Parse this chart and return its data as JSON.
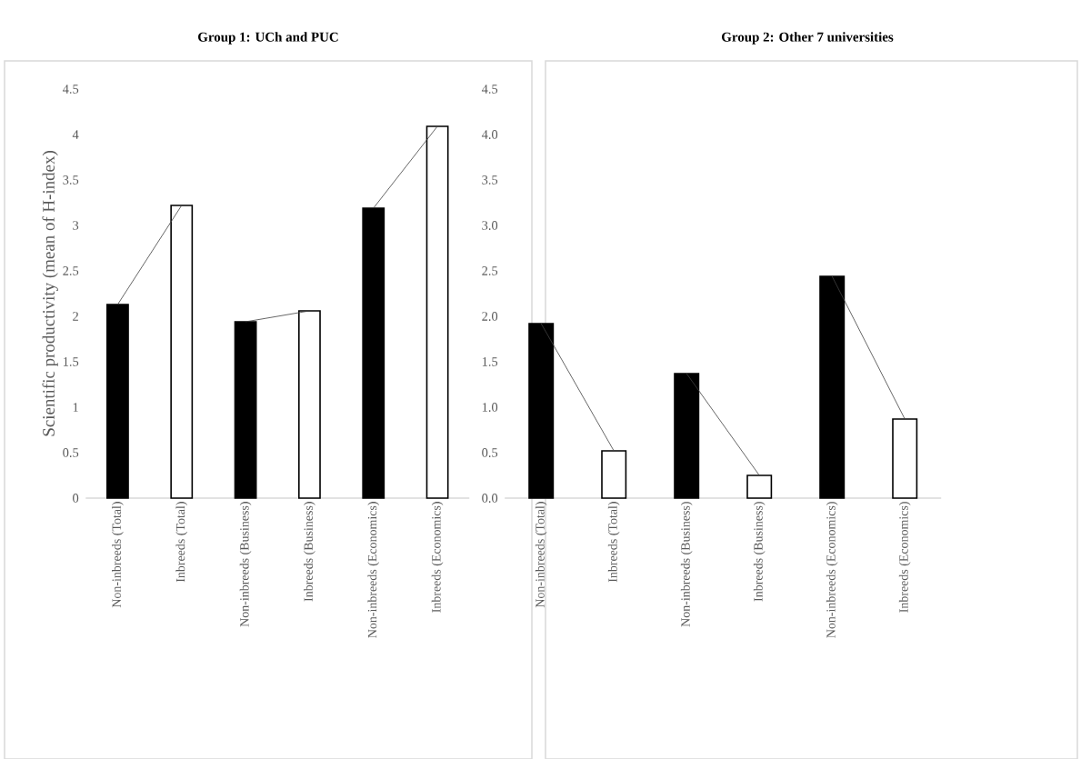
{
  "chart_data": [
    {
      "type": "bar",
      "title": "Group 1: UCh and PUC",
      "ylabel": "Scientific productivity (mean of H-index)",
      "categories": [
        "Non-inbreeds (Total)",
        "Inbreeds (Total)",
        "Non-inbreeds (Business)",
        "Inbreeds (Business)",
        "Non-inbreeds (Economics)",
        "Inbreeds (Economics)"
      ],
      "series": [
        {
          "colors": [
            "#000000",
            "#ffffff",
            "#000000",
            "#ffffff",
            "#000000",
            "#ffffff"
          ],
          "values": [
            2.13,
            3.22,
            1.94,
            2.06,
            3.19,
            4.09
          ]
        },
        {
          "type": "line",
          "color": "#404040",
          "values": [
            2.13,
            3.22,
            null,
            null,
            null,
            null
          ]
        },
        {
          "type": "line",
          "color": "#404040",
          "values": [
            null,
            null,
            1.94,
            2.06,
            null,
            null
          ]
        },
        {
          "type": "line",
          "color": "#404040",
          "values": [
            null,
            null,
            null,
            null,
            3.19,
            4.09
          ]
        }
      ],
      "ylim": [
        0,
        4.5
      ],
      "yticks": [
        0,
        0.5,
        1,
        1.5,
        2,
        2.5,
        3,
        3.5,
        4,
        4.5
      ]
    },
    {
      "type": "bar",
      "title": "Group 2: Other 7 universities",
      "categories": [
        "Non-inbreeds (Total)",
        "Inbreeds (Total)",
        "Non-inbreeds (Business)",
        "Inbreeds (Business)",
        "Non-inbreeds (Economics)",
        "Inbreeds (Economics)"
      ],
      "series": [
        {
          "colors": [
            "#000000",
            "#ffffff",
            "#000000",
            "#ffffff",
            "#000000",
            "#ffffff"
          ],
          "values": [
            1.92,
            0.52,
            1.37,
            0.25,
            2.44,
            0.87
          ]
        },
        {
          "type": "line",
          "color": "#404040",
          "values": [
            1.92,
            0.52,
            null,
            null,
            null,
            null
          ]
        },
        {
          "type": "line",
          "color": "#404040",
          "values": [
            null,
            null,
            1.37,
            0.25,
            null,
            null
          ]
        },
        {
          "type": "line",
          "color": "#404040",
          "values": [
            null,
            null,
            null,
            null,
            2.44,
            0.87
          ]
        }
      ],
      "ylim": [
        0,
        4.5
      ],
      "yticks": [
        {
          "value": 0,
          "label": "0.0"
        },
        0.5,
        {
          "value": 1,
          "label": "1.0"
        },
        1.5,
        {
          "value": 2,
          "label": "2.0"
        },
        2.5,
        {
          "value": 3,
          "label": "3.0"
        },
        3.5,
        {
          "value": 4,
          "label": "4.0"
        },
        4.5
      ]
    }
  ]
}
